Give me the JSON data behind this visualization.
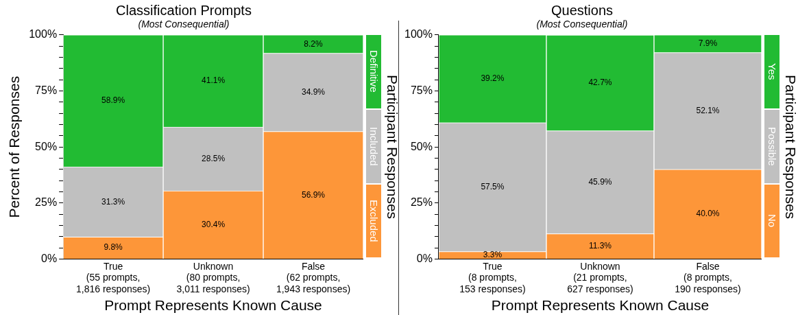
{
  "chart_data": [
    {
      "type": "bar",
      "title": "Classification Prompts",
      "subtitle": "(Most Consequential)",
      "xlabel": "Prompt Represents Known Cause",
      "ylabel": "Percent of Responses",
      "legend_title": "Participant Responses",
      "legend": "right",
      "stacked": true,
      "categories": [
        "True\n(55 prompts,\n1,816 responses)",
        "Unknown\n(80 prompts,\n3,011 responses)",
        "False\n(62 prompts,\n1,943 responses)"
      ],
      "ylim": [
        0,
        100
      ],
      "yticks": [
        {
          "value": 0,
          "label": "0%"
        },
        {
          "value": 5,
          "label": null
        },
        {
          "value": 10,
          "label": null
        },
        {
          "value": 15,
          "label": null
        },
        {
          "value": 20,
          "label": null
        },
        {
          "value": 25,
          "label": "25%"
        },
        {
          "value": 30,
          "label": null
        },
        {
          "value": 35,
          "label": null
        },
        {
          "value": 40,
          "label": null
        },
        {
          "value": 45,
          "label": null
        },
        {
          "value": 50,
          "label": "50%"
        },
        {
          "value": 55,
          "label": null
        },
        {
          "value": 60,
          "label": null
        },
        {
          "value": 65,
          "label": null
        },
        {
          "value": 70,
          "label": null
        },
        {
          "value": 75,
          "label": "75%"
        },
        {
          "value": 80,
          "label": null
        },
        {
          "value": 85,
          "label": null
        },
        {
          "value": 90,
          "label": null
        },
        {
          "value": 95,
          "label": null
        },
        {
          "value": 100,
          "label": "100%"
        }
      ],
      "series": [
        {
          "name": "Excluded",
          "color": "#fd9639",
          "values": [
            9.8,
            30.4,
            56.9
          ],
          "value_labels": [
            "9.8%",
            "30.4%",
            "56.9%"
          ]
        },
        {
          "name": "Included",
          "color": "#c0c0c0",
          "values": [
            31.3,
            28.5,
            34.9
          ],
          "value_labels": [
            "31.3%",
            "28.5%",
            "34.9%"
          ]
        },
        {
          "name": "Definitive",
          "color": "#22bb33",
          "values": [
            58.9,
            41.1,
            8.2
          ],
          "value_labels": [
            "58.9%",
            "41.1%",
            "8.2%"
          ]
        }
      ]
    },
    {
      "type": "bar",
      "title": "Questions",
      "subtitle": "(Most Consequential)",
      "xlabel": "Prompt Represents Known Cause",
      "legend_title": "Participant Responses",
      "legend": "right",
      "stacked": true,
      "categories": [
        "True\n(8 prompts,\n153 responses)",
        "Unknown\n(21 prompts,\n627 responses)",
        "False\n(8 prompts,\n190 responses)"
      ],
      "ylim": [
        0,
        100
      ],
      "yticks": [
        {
          "value": 0,
          "label": "0%"
        },
        {
          "value": 5,
          "label": null
        },
        {
          "value": 10,
          "label": null
        },
        {
          "value": 15,
          "label": null
        },
        {
          "value": 20,
          "label": null
        },
        {
          "value": 25,
          "label": "25%"
        },
        {
          "value": 30,
          "label": null
        },
        {
          "value": 35,
          "label": null
        },
        {
          "value": 40,
          "label": null
        },
        {
          "value": 45,
          "label": null
        },
        {
          "value": 50,
          "label": "50%"
        },
        {
          "value": 55,
          "label": null
        },
        {
          "value": 60,
          "label": null
        },
        {
          "value": 65,
          "label": null
        },
        {
          "value": 70,
          "label": null
        },
        {
          "value": 75,
          "label": "75%"
        },
        {
          "value": 80,
          "label": null
        },
        {
          "value": 85,
          "label": null
        },
        {
          "value": 90,
          "label": null
        },
        {
          "value": 95,
          "label": null
        },
        {
          "value": 100,
          "label": "100%"
        }
      ],
      "series": [
        {
          "name": "No",
          "color": "#fd9639",
          "values": [
            3.3,
            11.3,
            40.0
          ],
          "value_labels": [
            "3.3%",
            "11.3%",
            "40.0%"
          ]
        },
        {
          "name": "Possible",
          "color": "#c0c0c0",
          "values": [
            57.5,
            45.9,
            52.1
          ],
          "value_labels": [
            "57.5%",
            "45.9%",
            "52.1%"
          ]
        },
        {
          "name": "Yes",
          "color": "#22bb33",
          "values": [
            39.2,
            42.7,
            7.9
          ],
          "value_labels": [
            "39.2%",
            "42.7%",
            "7.9%"
          ]
        }
      ]
    }
  ]
}
